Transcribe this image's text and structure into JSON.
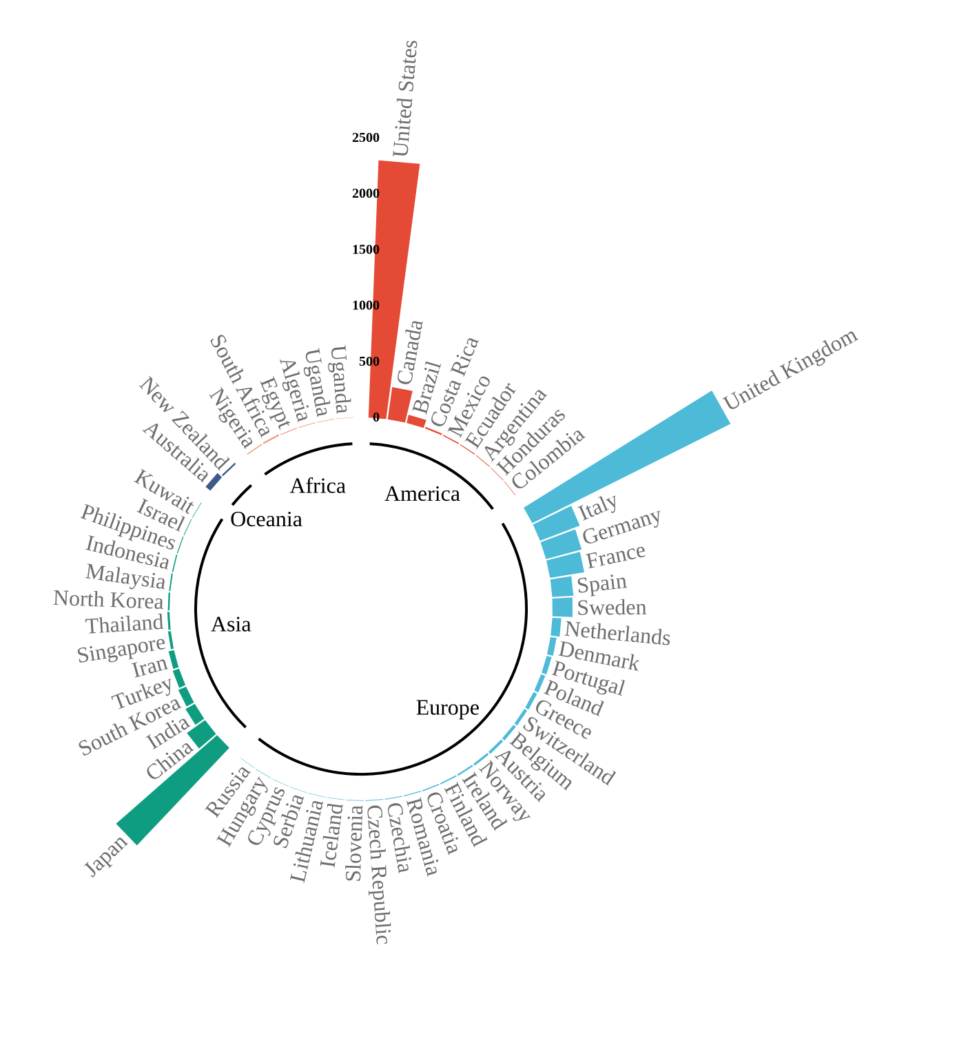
{
  "chart_data": {
    "type": "bar",
    "layout": "circular",
    "title": "",
    "xlabel": "",
    "ylabel": "",
    "ylim": [
      0,
      2500
    ],
    "y_ticks": [
      0,
      500,
      1000,
      1500,
      2000,
      2500
    ],
    "grid": false,
    "legend": "none",
    "groups": [
      {
        "name": "America",
        "color": "#e44a35",
        "countries": [
          {
            "name": "United States",
            "value": 2300
          },
          {
            "name": "Canada",
            "value": 290
          },
          {
            "name": "Brazil",
            "value": 75
          },
          {
            "name": "Costa Rica",
            "value": 15
          },
          {
            "name": "Mexico",
            "value": 10
          },
          {
            "name": "Ecuador",
            "value": 8
          },
          {
            "name": "Argentina",
            "value": 6
          },
          {
            "name": "Honduras",
            "value": 5
          },
          {
            "name": "Colombia",
            "value": 4
          }
        ]
      },
      {
        "name": "Europe",
        "color": "#4dbad7",
        "countries": [
          {
            "name": "United Kingdom",
            "value": 1980
          },
          {
            "name": "Italy",
            "value": 380
          },
          {
            "name": "Germany",
            "value": 330
          },
          {
            "name": "France",
            "value": 310
          },
          {
            "name": "Spain",
            "value": 190
          },
          {
            "name": "Sweden",
            "value": 180
          },
          {
            "name": "Netherlands",
            "value": 80
          },
          {
            "name": "Denmark",
            "value": 55
          },
          {
            "name": "Portugal",
            "value": 45
          },
          {
            "name": "Poland",
            "value": 40
          },
          {
            "name": "Greece",
            "value": 35
          },
          {
            "name": "Switzerland",
            "value": 30
          },
          {
            "name": "Belgium",
            "value": 28
          },
          {
            "name": "Austria",
            "value": 25
          },
          {
            "name": "Norway",
            "value": 20
          },
          {
            "name": "Ireland",
            "value": 15
          },
          {
            "name": "Finland",
            "value": 12
          },
          {
            "name": "Croatia",
            "value": 10
          },
          {
            "name": "Romania",
            "value": 8
          },
          {
            "name": "Czechia",
            "value": 7
          },
          {
            "name": "Czech Republic",
            "value": 6
          },
          {
            "name": "Slovenia",
            "value": 5
          },
          {
            "name": "Iceland",
            "value": 4
          },
          {
            "name": "Lithuania",
            "value": 4
          },
          {
            "name": "Serbia",
            "value": 3
          },
          {
            "name": "Cyprus",
            "value": 3
          },
          {
            "name": "Hungary",
            "value": 3
          },
          {
            "name": "Russia",
            "value": 2
          }
        ]
      },
      {
        "name": "Asia",
        "color": "#0f9d81",
        "countries": [
          {
            "name": "Japan",
            "value": 1200
          },
          {
            "name": "China",
            "value": 200
          },
          {
            "name": "India",
            "value": 95
          },
          {
            "name": "South Korea",
            "value": 75
          },
          {
            "name": "Turkey",
            "value": 60
          },
          {
            "name": "Iran",
            "value": 50
          },
          {
            "name": "Singapore",
            "value": 25
          },
          {
            "name": "Thailand",
            "value": 20
          },
          {
            "name": "North Korea",
            "value": 15
          },
          {
            "name": "Malaysia",
            "value": 12
          },
          {
            "name": "Indonesia",
            "value": 10
          },
          {
            "name": "Philippines",
            "value": 8
          },
          {
            "name": "Israel",
            "value": 6
          },
          {
            "name": "Kuwait",
            "value": 5
          }
        ]
      },
      {
        "name": "Oceania",
        "color": "#3d5a8a",
        "countries": [
          {
            "name": "Australia",
            "value": 55
          },
          {
            "name": "New Zealand",
            "value": 15
          }
        ]
      },
      {
        "name": "Africa",
        "color": "#f0a08a",
        "countries": [
          {
            "name": "Nigeria",
            "value": 10
          },
          {
            "name": "South Africa",
            "value": 15
          },
          {
            "name": "Egypt",
            "value": 8
          },
          {
            "name": "Algeria",
            "value": 6
          },
          {
            "name": "Uganda",
            "value": 5
          },
          {
            "name": "Uganda",
            "value": 4
          }
        ]
      }
    ]
  }
}
